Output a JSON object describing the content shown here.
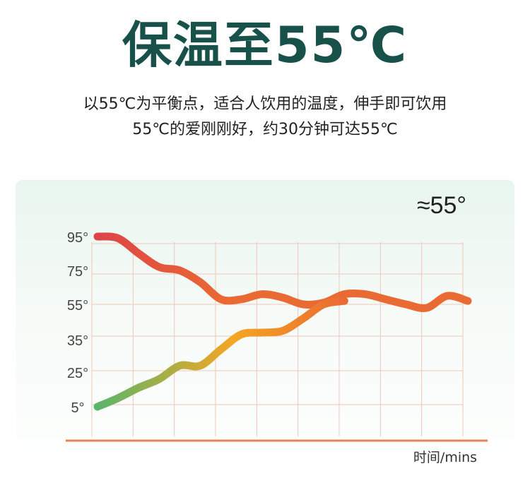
{
  "header": {
    "title": "保温至55℃",
    "subtitle_line1": "以55℃为平衡点，适合人饮用的温度，伸手即可饮用",
    "subtitle_line2": "55℃的爱刚刚好，约30分钟可达55℃"
  },
  "chart_data": {
    "type": "line",
    "title": "",
    "annotation": "≈55°",
    "xlabel": "时间/mins",
    "ylabel": "",
    "y_ticks": [
      "95°",
      "75°",
      "55°",
      "35°",
      "25°",
      "5°"
    ],
    "x_ticks": [],
    "grid": true,
    "legend": "none",
    "series": [
      {
        "x": [
          0,
          0.5,
          1,
          1.5,
          2,
          2.5,
          3,
          3.5,
          4,
          4.5,
          5,
          5.5,
          6,
          6.5,
          7,
          7.5,
          8,
          8.5,
          9
        ],
        "values": [
          95,
          94,
          85,
          77,
          75,
          68,
          58,
          58,
          61,
          59,
          55,
          56,
          61,
          61,
          58,
          55,
          53,
          60,
          57
        ],
        "colors": [
          "#dd4448",
          "#ea6a33"
        ]
      },
      {
        "x": [
          0,
          0.5,
          1,
          1.5,
          2,
          2.5,
          3,
          3.5,
          4,
          4.5,
          5,
          5.5,
          6
        ],
        "values": [
          5,
          10,
          16,
          21,
          27,
          27,
          32,
          38,
          39,
          40,
          47,
          55,
          57
        ],
        "colors": [
          "#5bb56c",
          "#f5a623",
          "#ea6a33"
        ]
      }
    ],
    "colors": {
      "grid": "#eec7b8",
      "axis": "#e8834f",
      "tick_text": "#444444",
      "annotation": "#222222"
    }
  }
}
